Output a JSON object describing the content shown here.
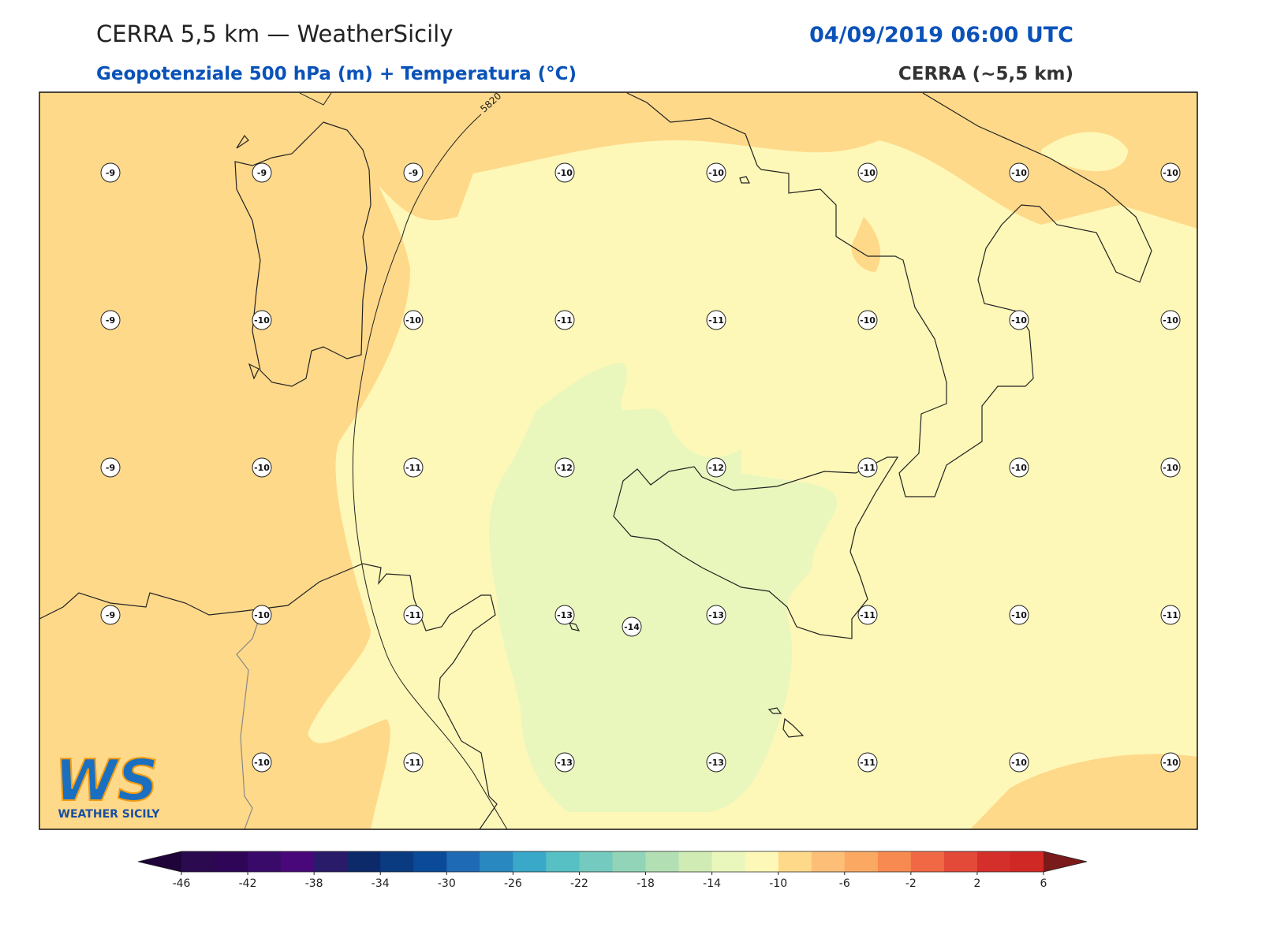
{
  "header": {
    "title": "CERRA 5,5 km — WeatherSicily",
    "datetime": "04/09/2019 06:00 UTC",
    "subtitle": "Geopotenziale 500 hPa (m) + Temperatura (°C)",
    "model": "CERRA (~5,5 km)"
  },
  "map": {
    "contour_label": "5820",
    "temperature_labels": [
      [
        -9,
        -9,
        -9,
        -10,
        -10,
        -10,
        -10,
        -10
      ],
      [
        -9,
        -10,
        -10,
        -11,
        -11,
        -10,
        -10,
        -10
      ],
      [
        -9,
        -10,
        -11,
        -12,
        -12,
        -11,
        -10,
        -10
      ],
      [
        -9,
        -10,
        -11,
        -13,
        -13,
        -11,
        -10,
        -11
      ],
      [
        null,
        -10,
        -11,
        -13,
        -13,
        -11,
        -10,
        -10
      ]
    ],
    "minimum_label": -14
  },
  "colorbar": {
    "ticks": [
      -46,
      -42,
      -38,
      -34,
      -30,
      -26,
      -22,
      -18,
      -14,
      -10,
      -6,
      -2,
      2,
      6
    ],
    "under_color": "#1e0438",
    "over_color": "#7a1a1a",
    "colors": [
      "#2b0a4f",
      "#2e0557",
      "#3a0a6a",
      "#48087a",
      "#2a1a6a",
      "#0c2a6a",
      "#0a3a80",
      "#0a4a98",
      "#1e6ab4",
      "#2a88c0",
      "#3aa8c8",
      "#56c0c4",
      "#74cabe",
      "#92d4b8",
      "#b2e0b4",
      "#d0ecb4",
      "#eaf7bc",
      "#fef8b8",
      "#fed98a",
      "#fdbf78",
      "#fba862",
      "#f78a50",
      "#f06844",
      "#e44a38",
      "#d42f2a",
      "#d02824"
    ]
  },
  "logo": {
    "mark": "WS",
    "text": "WEATHER SICILY"
  }
}
